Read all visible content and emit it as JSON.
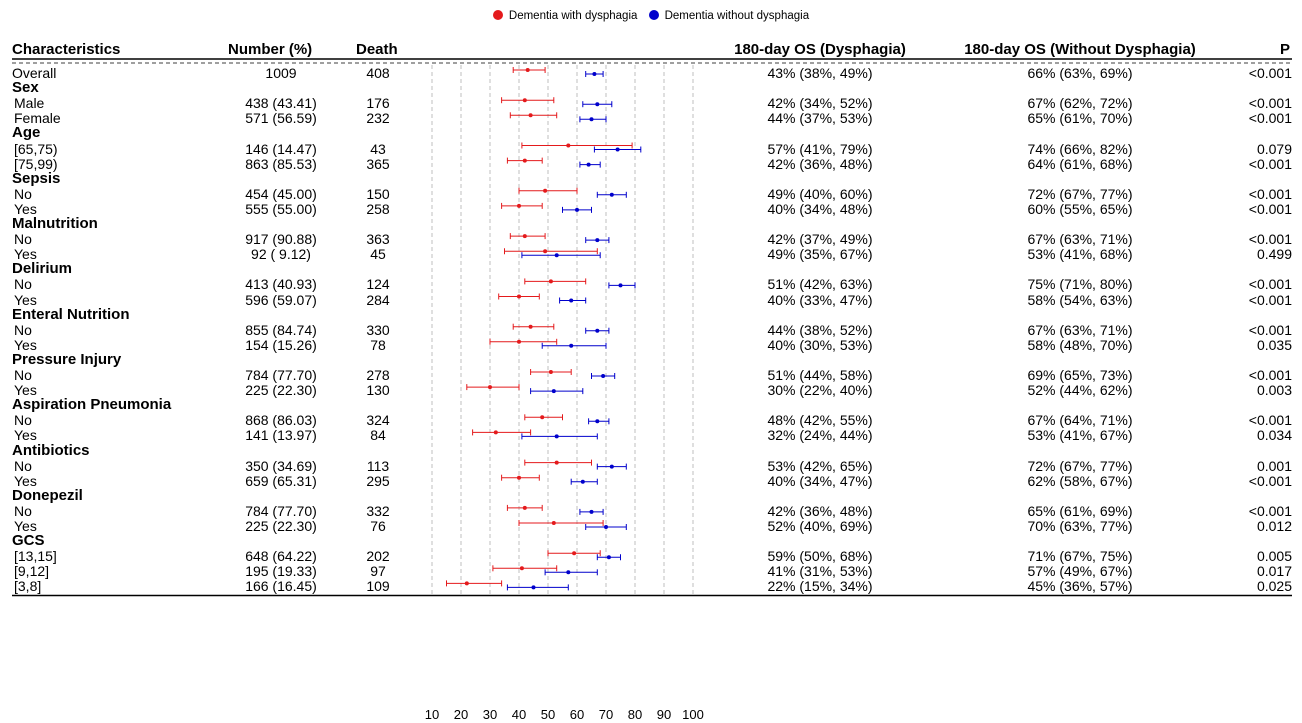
{
  "legend": [
    {
      "label": "Dementia with dysphagia",
      "color": "#e41a1c"
    },
    {
      "label": "Dementia without dysphagia",
      "color": "#0000cc"
    }
  ],
  "headers": {
    "characteristics": "Characteristics",
    "number": "Number (%)",
    "death": "Death",
    "os_dys": "180-day OS (Dysphagia)",
    "os_nodys": "180-day OS (Without Dysphagia)",
    "p": "P"
  },
  "chart_data": {
    "type": "forest",
    "x_ticks": [
      10,
      20,
      30,
      40,
      50,
      60,
      70,
      80,
      90,
      100
    ],
    "xlim": [
      10,
      100
    ],
    "grid": "vertical dashed lines",
    "series": [
      {
        "name": "Dementia with dysphagia",
        "color": "#e41a1c"
      },
      {
        "name": "Dementia without dysphagia",
        "color": "#0000cc"
      }
    ],
    "rows": [
      {
        "label": "Overall",
        "number": "1009",
        "death": "408",
        "os_dys": "43% (38%, 49%)",
        "os_nodys": "66% (63%, 69%)",
        "p": "<0.001",
        "dys": [
          43,
          38,
          49
        ],
        "nodys": [
          66,
          63,
          69
        ]
      },
      {
        "group": "Sex"
      },
      {
        "label": "Male",
        "number": "438 (43.41)",
        "death": "176",
        "os_dys": "42% (34%, 52%)",
        "os_nodys": "67% (62%, 72%)",
        "p": "<0.001",
        "dys": [
          42,
          34,
          52
        ],
        "nodys": [
          67,
          62,
          72
        ]
      },
      {
        "label": "Female",
        "number": "571 (56.59)",
        "death": "232",
        "os_dys": "44% (37%, 53%)",
        "os_nodys": "65% (61%, 70%)",
        "p": "<0.001",
        "dys": [
          44,
          37,
          53
        ],
        "nodys": [
          65,
          61,
          70
        ]
      },
      {
        "group": "Age"
      },
      {
        "label": "[65,75)",
        "number": "146 (14.47)",
        "death": "43",
        "os_dys": "57% (41%, 79%)",
        "os_nodys": "74% (66%, 82%)",
        "p": "0.079",
        "dys": [
          57,
          41,
          79
        ],
        "nodys": [
          74,
          66,
          82
        ]
      },
      {
        "label": "[75,99)",
        "number": "863 (85.53)",
        "death": "365",
        "os_dys": "42% (36%, 48%)",
        "os_nodys": "64% (61%, 68%)",
        "p": "<0.001",
        "dys": [
          42,
          36,
          48
        ],
        "nodys": [
          64,
          61,
          68
        ]
      },
      {
        "group": "Sepsis"
      },
      {
        "label": "No",
        "number": "454 (45.00)",
        "death": "150",
        "os_dys": "49% (40%, 60%)",
        "os_nodys": "72% (67%, 77%)",
        "p": "<0.001",
        "dys": [
          49,
          40,
          60
        ],
        "nodys": [
          72,
          67,
          77
        ]
      },
      {
        "label": "Yes",
        "number": "555 (55.00)",
        "death": "258",
        "os_dys": "40% (34%, 48%)",
        "os_nodys": "60% (55%, 65%)",
        "p": "<0.001",
        "dys": [
          40,
          34,
          48
        ],
        "nodys": [
          60,
          55,
          65
        ]
      },
      {
        "group": "Malnutrition"
      },
      {
        "label": "No",
        "number": "917 (90.88)",
        "death": "363",
        "os_dys": "42% (37%, 49%)",
        "os_nodys": "67% (63%, 71%)",
        "p": "<0.001",
        "dys": [
          42,
          37,
          49
        ],
        "nodys": [
          67,
          63,
          71
        ]
      },
      {
        "label": "Yes",
        "number": "92 ( 9.12)",
        "death": "45",
        "os_dys": "49% (35%, 67%)",
        "os_nodys": "53% (41%, 68%)",
        "p": "0.499",
        "dys": [
          49,
          35,
          67
        ],
        "nodys": [
          53,
          41,
          68
        ]
      },
      {
        "group": "Delirium"
      },
      {
        "label": "No",
        "number": "413 (40.93)",
        "death": "124",
        "os_dys": "51% (42%, 63%)",
        "os_nodys": "75% (71%, 80%)",
        "p": "<0.001",
        "dys": [
          51,
          42,
          63
        ],
        "nodys": [
          75,
          71,
          80
        ]
      },
      {
        "label": "Yes",
        "number": "596 (59.07)",
        "death": "284",
        "os_dys": "40% (33%, 47%)",
        "os_nodys": "58% (54%, 63%)",
        "p": "<0.001",
        "dys": [
          40,
          33,
          47
        ],
        "nodys": [
          58,
          54,
          63
        ]
      },
      {
        "group": "Enteral Nutrition"
      },
      {
        "label": "No",
        "number": "855 (84.74)",
        "death": "330",
        "os_dys": "44% (38%, 52%)",
        "os_nodys": "67% (63%, 71%)",
        "p": "<0.001",
        "dys": [
          44,
          38,
          52
        ],
        "nodys": [
          67,
          63,
          71
        ]
      },
      {
        "label": "Yes",
        "number": "154 (15.26)",
        "death": "78",
        "os_dys": "40% (30%, 53%)",
        "os_nodys": "58% (48%, 70%)",
        "p": "0.035",
        "dys": [
          40,
          30,
          53
        ],
        "nodys": [
          58,
          48,
          70
        ]
      },
      {
        "group": "Pressure Injury"
      },
      {
        "label": "No",
        "number": "784 (77.70)",
        "death": "278",
        "os_dys": "51% (44%, 58%)",
        "os_nodys": "69% (65%, 73%)",
        "p": "<0.001",
        "dys": [
          51,
          44,
          58
        ],
        "nodys": [
          69,
          65,
          73
        ]
      },
      {
        "label": "Yes",
        "number": "225 (22.30)",
        "death": "130",
        "os_dys": "30% (22%, 40%)",
        "os_nodys": "52% (44%, 62%)",
        "p": "0.003",
        "dys": [
          30,
          22,
          40
        ],
        "nodys": [
          52,
          44,
          62
        ]
      },
      {
        "group": "Aspiration Pneumonia"
      },
      {
        "label": "No",
        "number": "868 (86.03)",
        "death": "324",
        "os_dys": "48% (42%, 55%)",
        "os_nodys": "67% (64%, 71%)",
        "p": "<0.001",
        "dys": [
          48,
          42,
          55
        ],
        "nodys": [
          67,
          64,
          71
        ]
      },
      {
        "label": "Yes",
        "number": "141 (13.97)",
        "death": "84",
        "os_dys": "32% (24%, 44%)",
        "os_nodys": "53% (41%, 67%)",
        "p": "0.034",
        "dys": [
          32,
          24,
          44
        ],
        "nodys": [
          53,
          41,
          67
        ]
      },
      {
        "group": "Antibiotics"
      },
      {
        "label": "No",
        "number": "350 (34.69)",
        "death": "113",
        "os_dys": "53% (42%, 65%)",
        "os_nodys": "72% (67%, 77%)",
        "p": "0.001",
        "dys": [
          53,
          42,
          65
        ],
        "nodys": [
          72,
          67,
          77
        ]
      },
      {
        "label": "Yes",
        "number": "659 (65.31)",
        "death": "295",
        "os_dys": "40% (34%, 47%)",
        "os_nodys": "62% (58%, 67%)",
        "p": "<0.001",
        "dys": [
          40,
          34,
          47
        ],
        "nodys": [
          62,
          58,
          67
        ]
      },
      {
        "group": "Donepezil"
      },
      {
        "label": "No",
        "number": "784 (77.70)",
        "death": "332",
        "os_dys": "42% (36%, 48%)",
        "os_nodys": "65% (61%, 69%)",
        "p": "<0.001",
        "dys": [
          42,
          36,
          48
        ],
        "nodys": [
          65,
          61,
          69
        ]
      },
      {
        "label": "Yes",
        "number": "225 (22.30)",
        "death": "76",
        "os_dys": "52% (40%, 69%)",
        "os_nodys": "70% (63%, 77%)",
        "p": "0.012",
        "dys": [
          52,
          40,
          69
        ],
        "nodys": [
          70,
          63,
          77
        ]
      },
      {
        "group": "GCS"
      },
      {
        "label": "[13,15]",
        "number": "648 (64.22)",
        "death": "202",
        "os_dys": "59% (50%, 68%)",
        "os_nodys": "71% (67%, 75%)",
        "p": "0.005",
        "dys": [
          59,
          50,
          68
        ],
        "nodys": [
          71,
          67,
          75
        ]
      },
      {
        "label": "[9,12]",
        "number": "195 (19.33)",
        "death": "97",
        "os_dys": "41% (31%, 53%)",
        "os_nodys": "57% (49%, 67%)",
        "p": "0.017",
        "dys": [
          41,
          31,
          53
        ],
        "nodys": [
          57,
          49,
          67
        ]
      },
      {
        "label": "[3,8]",
        "number": "166 (16.45)",
        "death": "109",
        "os_dys": "22% (15%, 34%)",
        "os_nodys": "45% (36%, 57%)",
        "p": "0.025",
        "dys": [
          22,
          15,
          34
        ],
        "nodys": [
          45,
          36,
          57
        ]
      }
    ]
  }
}
